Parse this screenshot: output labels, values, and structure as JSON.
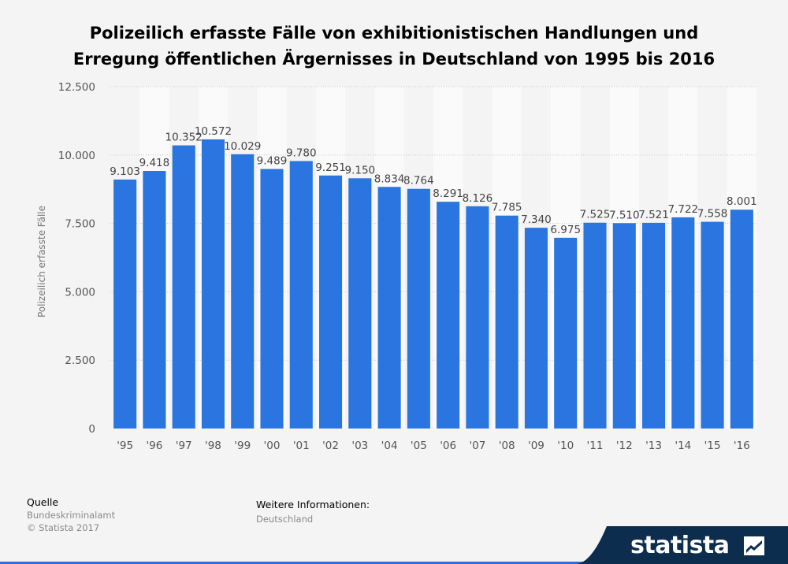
{
  "title_line1": "Polizeilich erfasste Fälle von exhibitionistischen Handlungen und",
  "title_line2": "Erregung öffentlichen Ärgernisses in Deutschland von 1995 bis 2016",
  "footer": {
    "source_label": "Quelle",
    "source_value": "Bundeskriminalamt",
    "copyright": "© Statista 2017",
    "info_label": "Weitere Informationen:",
    "info_value": "Deutschland"
  },
  "brand": {
    "name": "statista",
    "bg_color": "#0d2d4e"
  },
  "chart_data": {
    "type": "bar",
    "title": "Polizeilich erfasste Fälle von exhibitionistischen Handlungen und Erregung öffentlichen Ärgernisses in Deutschland von 1995 bis 2016",
    "xlabel": "",
    "ylabel": "Polizeilich erfasste Fälle",
    "ylim": [
      0,
      12500
    ],
    "yticks": [
      0,
      2500,
      5000,
      7500,
      10000,
      12500
    ],
    "ytick_labels": [
      "0",
      "2.500",
      "5.000",
      "7.500",
      "10.000",
      "12.500"
    ],
    "grid": true,
    "bar_color": "#2a75e0",
    "categories": [
      "'95",
      "'96",
      "'97",
      "'98",
      "'99",
      "'00",
      "'01",
      "'02",
      "'03",
      "'04",
      "'05",
      "'06",
      "'07",
      "'08",
      "'09",
      "'10",
      "'11",
      "'12",
      "'13",
      "'14",
      "'15",
      "'16"
    ],
    "values": [
      9103,
      9418,
      10352,
      10572,
      10029,
      9489,
      9780,
      9251,
      9150,
      8834,
      8764,
      8291,
      8126,
      7785,
      7340,
      6975,
      7525,
      7510,
      7521,
      7722,
      7558,
      8001
    ],
    "value_labels": [
      "9.103",
      "9.418",
      "10.352",
      "10.572",
      "10.029",
      "9.489",
      "9.780",
      "9.251",
      "9.150",
      "8.834",
      "8.764",
      "8.291",
      "8.126",
      "7.785",
      "7.340",
      "6.975",
      "7.525",
      "7.510",
      "7.521",
      "7.722",
      "7.558",
      "8.001"
    ]
  }
}
